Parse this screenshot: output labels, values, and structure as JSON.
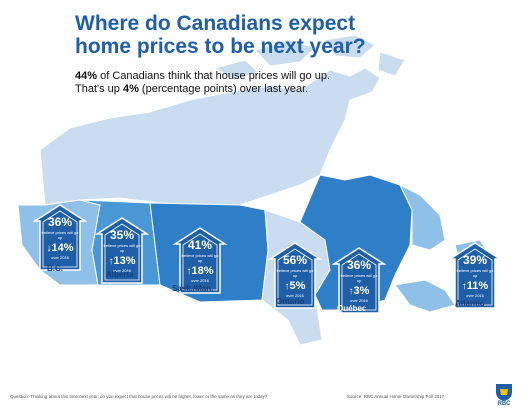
{
  "title_line1": "Where do Canadians expect",
  "title_line2": "home prices to be next year?",
  "subtitle": {
    "line1_bold": "44%",
    "line1_rest": " of Canadians think that house prices will go up.",
    "line2_pre": "That's up ",
    "line2_bold": "4%",
    "line2_rest": " (percentage points) over last year."
  },
  "national": {
    "pct_up": 44,
    "change_pts": 4
  },
  "colors": {
    "land_light": "#c9dcf0",
    "land_mid": "#8ec0e8",
    "land_dark": "#4a97d6",
    "land_darker": "#2f7fc8",
    "house_fill": "#1f5fa8",
    "house_stroke": "#ffffff",
    "title": "#1f5fa8"
  },
  "regions": [
    {
      "id": "bc",
      "name": "B.C.",
      "pct": "36%",
      "believe": "believe prices will go up",
      "arrow": "down",
      "arrow_glyph": "↓",
      "change": "14%",
      "over": "over 2016"
    },
    {
      "id": "alberta",
      "name": "Alberta",
      "pct": "35%",
      "believe": "believe prices will go up",
      "arrow": "up",
      "arrow_glyph": "↑",
      "change": "13%",
      "over": "over 2016"
    },
    {
      "id": "sask",
      "name": "Sask./Man.",
      "pct": "41%",
      "believe": "believe prices will go up",
      "arrow": "up",
      "arrow_glyph": "↑",
      "change": "18%",
      "over": "over 2016"
    },
    {
      "id": "ontario",
      "name": "Ontario",
      "pct": "56%",
      "believe": "believe prices will go up",
      "arrow": "up",
      "arrow_glyph": "↑",
      "change": "5%",
      "over": "over 2016"
    },
    {
      "id": "quebec",
      "name": "Québec",
      "pct": "36%",
      "believe": "believe prices will go up",
      "arrow": "up",
      "arrow_glyph": "↑",
      "change": "3%",
      "over": "over 2016"
    },
    {
      "id": "atlantic",
      "name": "Atlantic",
      "pct": "39%",
      "believe": "believe prices will go up",
      "arrow": "up",
      "arrow_glyph": "↑",
      "change": "11%",
      "over": "over 2016"
    }
  ],
  "footer": {
    "question": "Question: Thinking about this time next year, do you expect that house prices will be higher, lower or the same as they are today?",
    "source": "Source: RBC Annual Home Ownership Poll 2017"
  },
  "logo": {
    "text": "RBC",
    "icon": "rbc-lion-shield-icon"
  }
}
